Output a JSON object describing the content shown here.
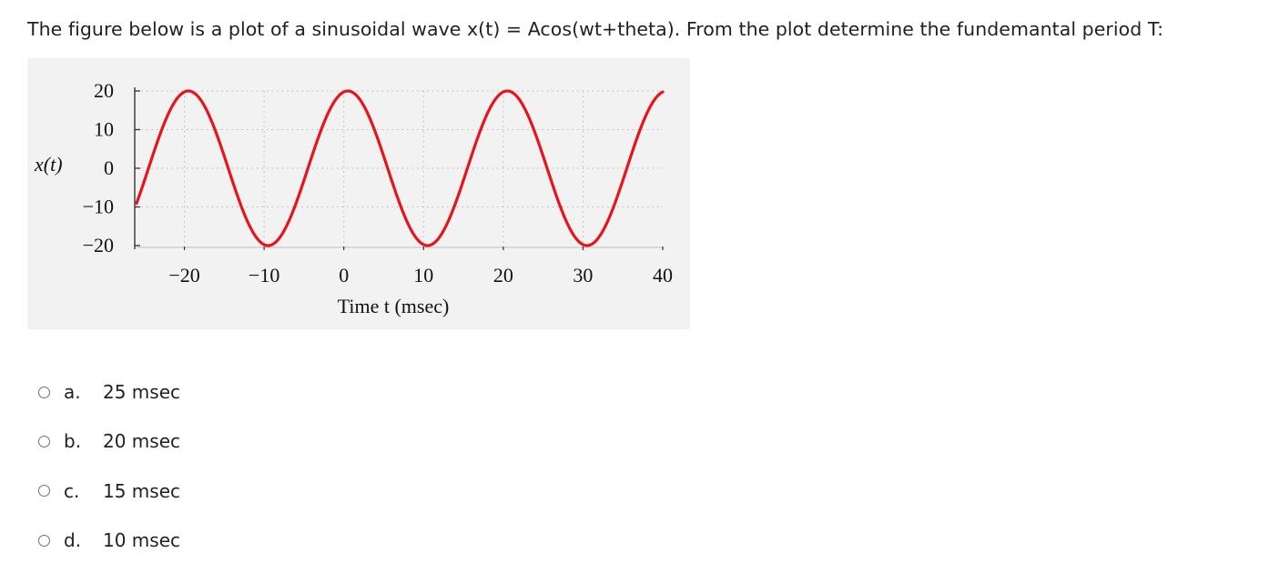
{
  "question": {
    "text": "The figure below is a plot of a sinusoidal wave x(t) = Acos(wt+theta). From the plot determine the fundemantal period T:"
  },
  "options": [
    {
      "letter": "a.",
      "text": "25 msec"
    },
    {
      "letter": "b.",
      "text": "20 msec"
    },
    {
      "letter": "c.",
      "text": "15 msec"
    },
    {
      "letter": "d.",
      "text": "10 msec"
    }
  ],
  "chart_data": {
    "type": "line",
    "title": "",
    "xlabel": "Time t (msec)",
    "ylabel": "x(t)",
    "xlim": [
      -26,
      40
    ],
    "ylim": [
      -20,
      20
    ],
    "x_ticks": [
      "−20",
      "−10",
      "0",
      "10",
      "20",
      "30",
      "40"
    ],
    "y_ticks": [
      "20",
      "10",
      "0",
      "−10",
      "−20"
    ],
    "grid": true,
    "colors": {
      "series": "#e8141b",
      "grid": "#b8b8b8",
      "axis": "#333333",
      "background": "#f2f2f2"
    },
    "series": [
      {
        "function": "20*cos(2*pi*(t-(-19.5))/20)",
        "amplitude": 20,
        "period_msec": 20,
        "peaks_t": [
          -19.5,
          0.5,
          20.5
        ],
        "troughs_t": [
          -9.5,
          10.5,
          30.5
        ],
        "t_range": [
          -26,
          40
        ]
      }
    ]
  }
}
